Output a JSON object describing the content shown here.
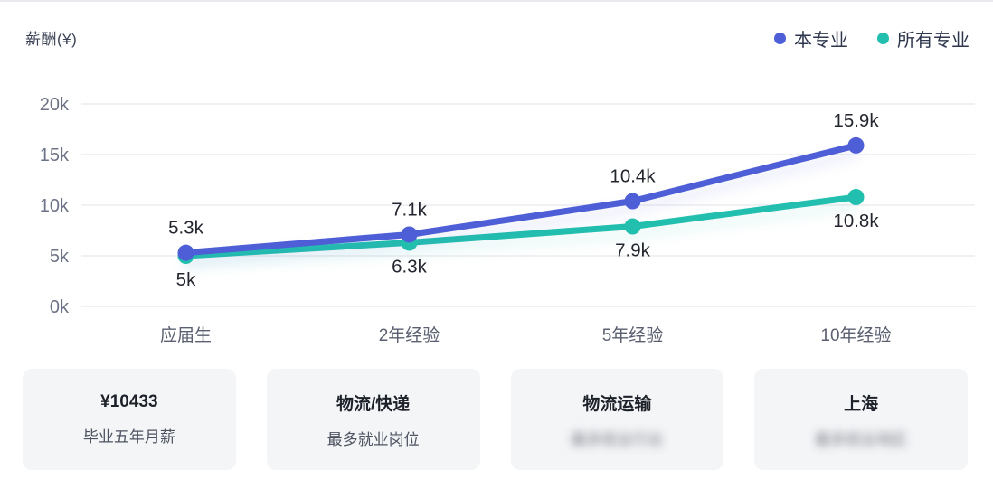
{
  "header": {
    "title": "薪酬(¥)"
  },
  "legend": {
    "items": [
      {
        "label": "本专业",
        "color": "#4d5ed6"
      },
      {
        "label": "所有专业",
        "color": "#22bfae"
      }
    ]
  },
  "chart_data": {
    "type": "line",
    "title": "薪酬(¥)",
    "categories": [
      "应届生",
      "2年经验",
      "5年经验",
      "10年经验"
    ],
    "series": [
      {
        "name": "本专业",
        "color": "#4d5ed6",
        "values": [
          5300,
          7100,
          10400,
          15900
        ],
        "point_labels": [
          "5.3k",
          "7.1k",
          "10.4k",
          "15.9k"
        ],
        "label_position": "above"
      },
      {
        "name": "所有专业",
        "color": "#22bfae",
        "values": [
          5000,
          6300,
          7900,
          10800
        ],
        "point_labels": [
          "5k",
          "6.3k",
          "7.9k",
          "10.8k"
        ],
        "label_position": "below"
      }
    ],
    "xlabel": "",
    "ylabel": "薪酬(¥)",
    "ylim": [
      0,
      20000
    ],
    "ytick_labels": [
      "0k",
      "5k",
      "10k",
      "15k",
      "20k"
    ],
    "grid": true,
    "legend_position": "top-right"
  },
  "stats_cards": {
    "items": [
      {
        "value": "¥10433",
        "label": "毕业五年月薪",
        "label_blurred": false
      },
      {
        "value": "物流/快递",
        "label": "最多就业岗位",
        "label_blurred": false
      },
      {
        "value": "物流运输",
        "label": "最多就业行业",
        "label_blurred": true
      },
      {
        "value": "上海",
        "label": "最多就业地区",
        "label_blurred": true
      }
    ]
  }
}
